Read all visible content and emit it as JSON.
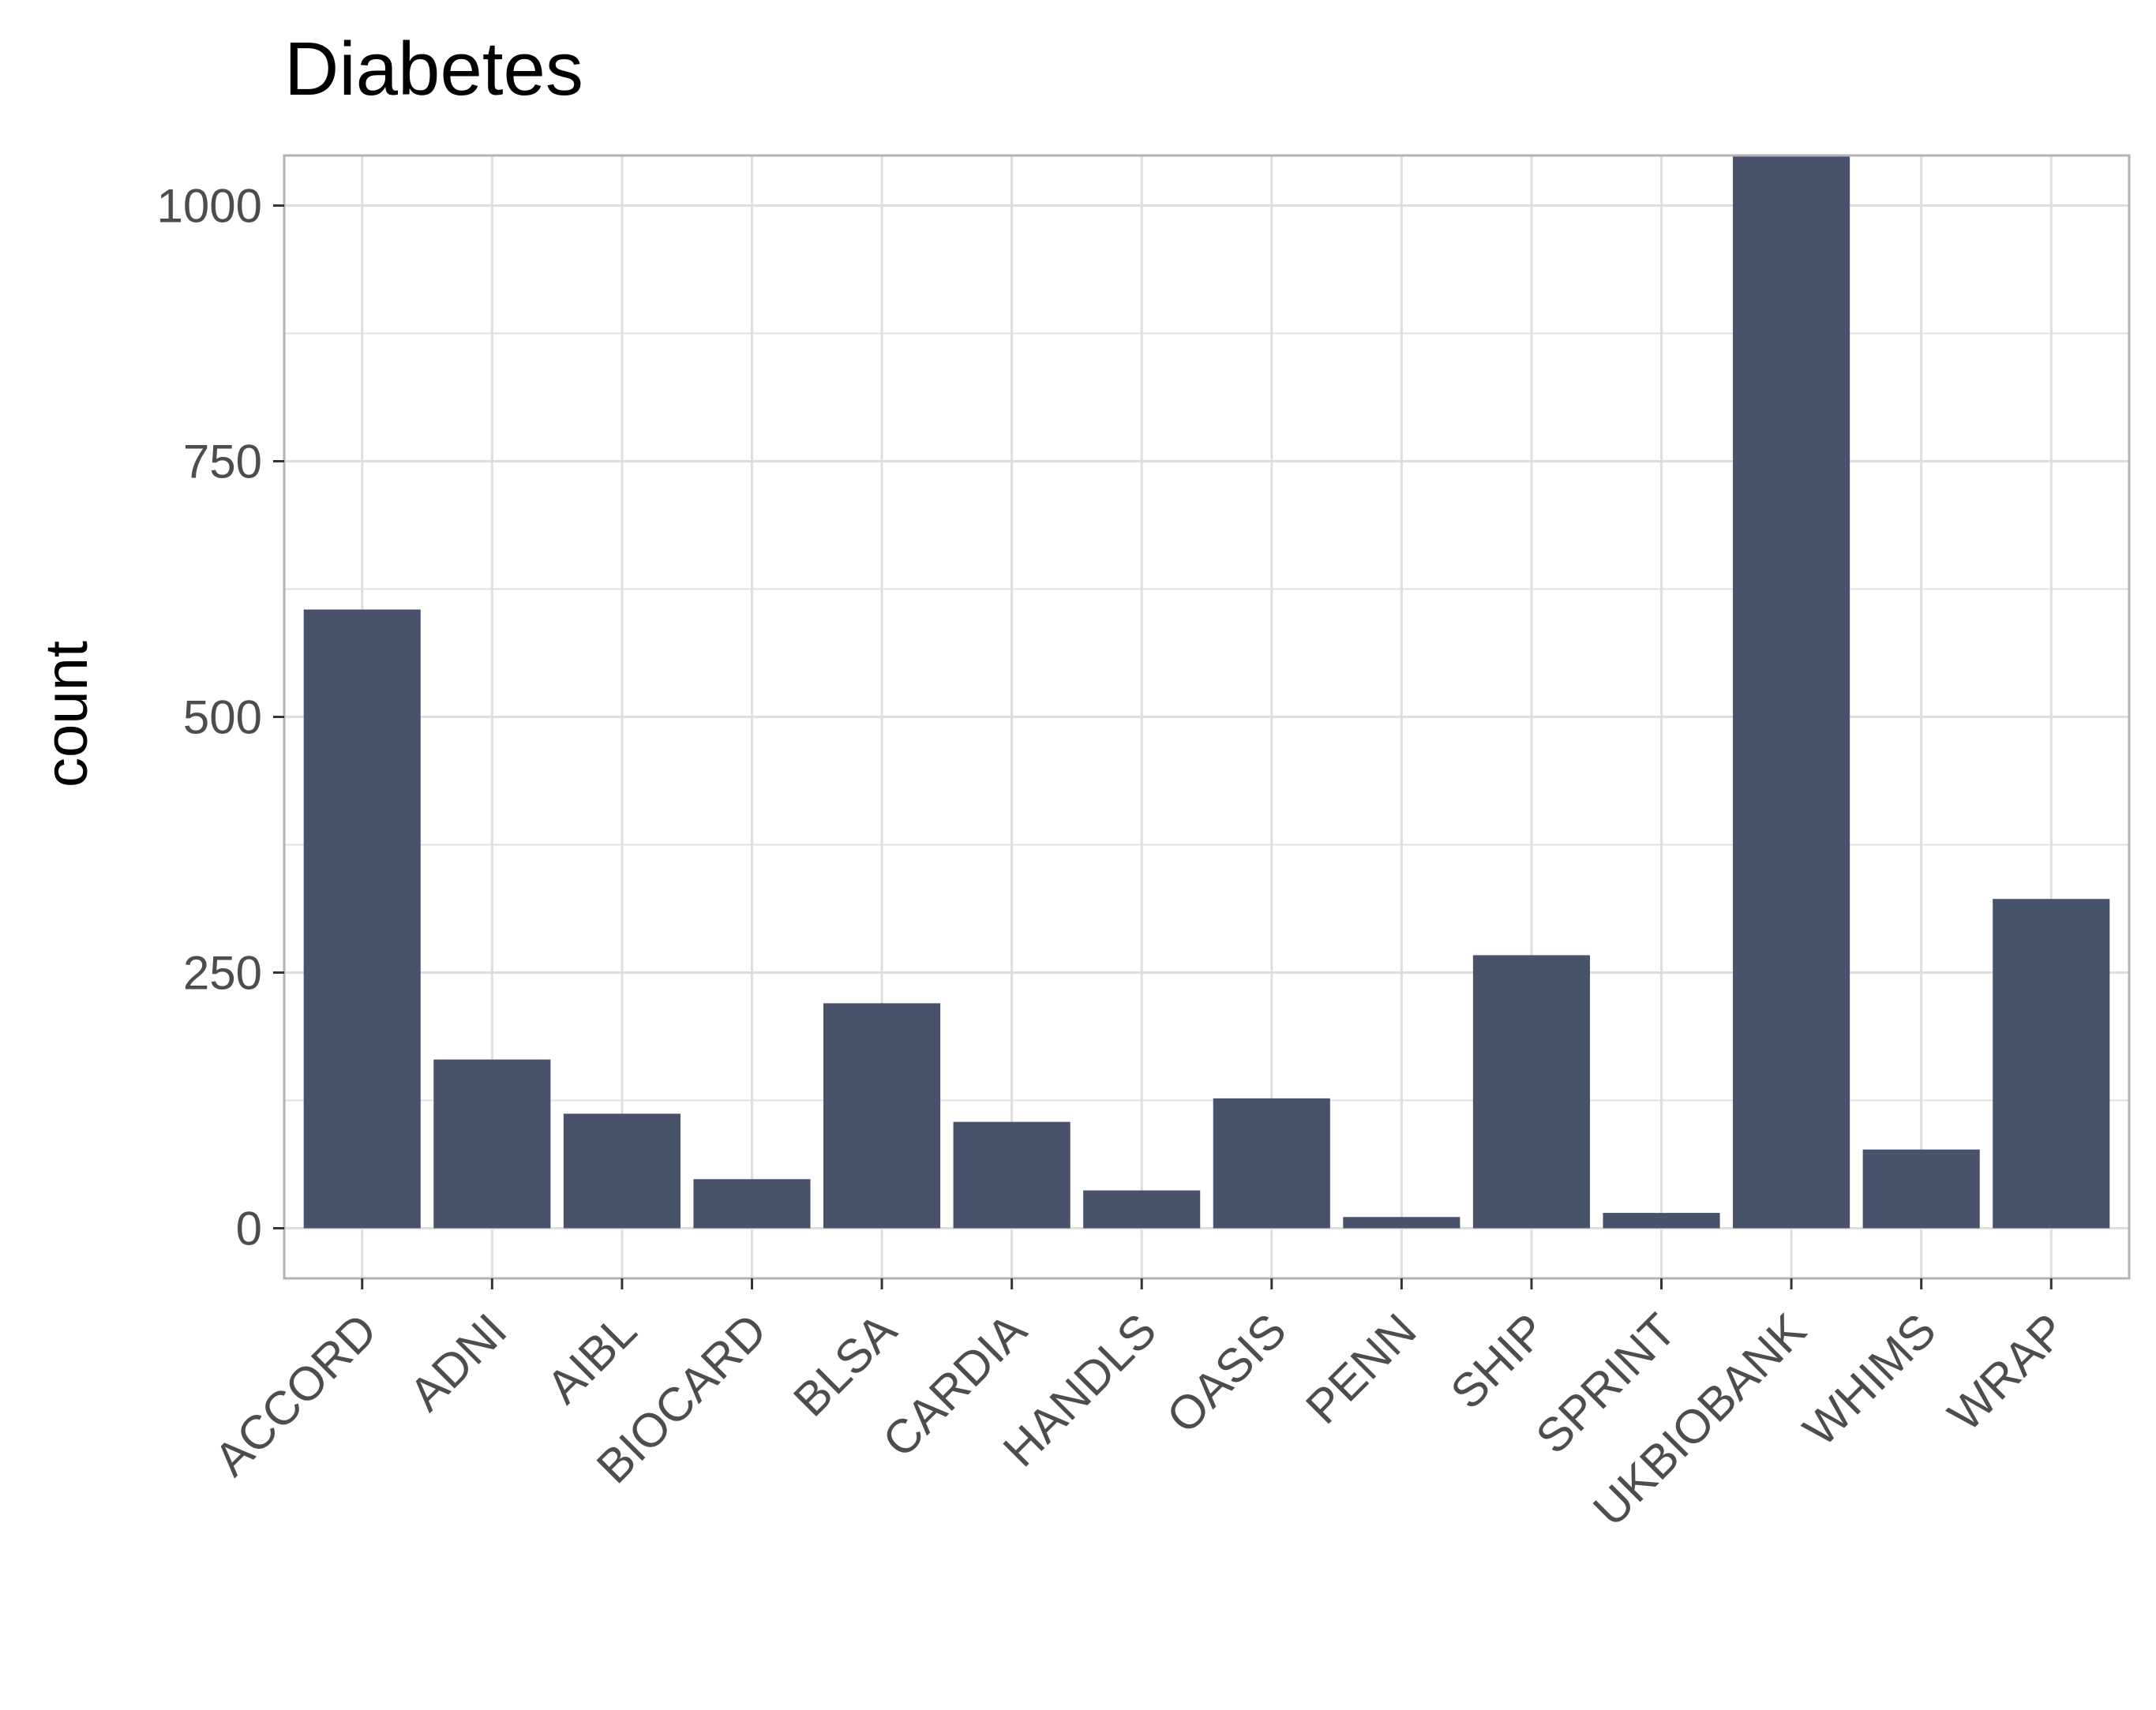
{
  "chart_data": {
    "type": "bar",
    "title": "Diabetes",
    "xlabel": "",
    "ylabel": "count",
    "categories": [
      "ACCORD",
      "ADNI",
      "AIBL",
      "BIOCARD",
      "BLSA",
      "CARDIA",
      "HANDLS",
      "OASIS",
      "PENN",
      "SHIP",
      "SPRINT",
      "UKBIOBANK",
      "WHIMS",
      "WRAP"
    ],
    "values": [
      605,
      165,
      112,
      48,
      220,
      104,
      37,
      127,
      11,
      267,
      15,
      1049,
      77,
      322
    ],
    "ylim": [
      -49,
      1049
    ],
    "yticks": [
      0,
      250,
      500,
      750,
      1000
    ],
    "ytick_labels": [
      "0",
      "250",
      "500",
      "750",
      "1000"
    ],
    "grid": true,
    "legend": "none",
    "colors": {
      "bar": "#48536b",
      "grid": "#dedede",
      "panel_border": "#b3b3b3",
      "tick_text": "#4d4d4d"
    }
  }
}
